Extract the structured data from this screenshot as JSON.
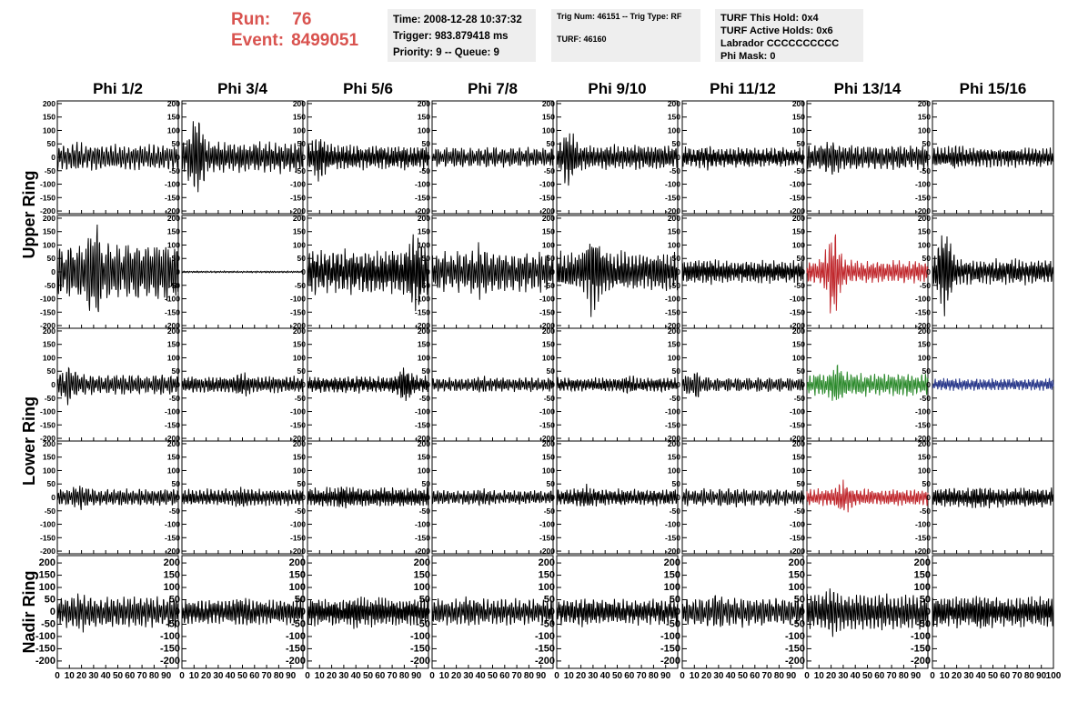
{
  "header": {
    "run_label": "Run:",
    "run_value": "76",
    "event_label": "Event:",
    "event_value": "8499051",
    "time": "Time: 2008-12-28 10:37:32",
    "trigger": "Trigger: 983.879418 ms",
    "priority": "Priority: 9 -- Queue: 9",
    "trig_num": "Trig Num: 46151 -- Trig Type: RF",
    "turf": "TURF: 46160",
    "turf_hold": "TURF This Hold: 0x4",
    "turf_active": "TURF Active Holds: 0x6",
    "labrador": "Labrador CCCCCCCCCC",
    "phi_mask": "Phi Mask: 0"
  },
  "colors": {
    "header_text": "#d9534f",
    "info_bg": "#eeeeee",
    "trace_default": "#000000",
    "trace_red": "#c0282d",
    "trace_green": "#2e8b2e",
    "trace_blue": "#2b3a8c"
  },
  "chart_data": {
    "type": "line",
    "title": "",
    "column_labels": [
      "Phi 1/2",
      "Phi 3/4",
      "Phi 5/6",
      "Phi 7/8",
      "Phi 9/10",
      "Phi 11/12",
      "Phi 13/14",
      "Phi 15/16"
    ],
    "group_labels": [
      {
        "label": "Upper Ring",
        "rows": [
          0,
          1
        ]
      },
      {
        "label": "Lower Ring",
        "rows": [
          2,
          3
        ]
      },
      {
        "label": "Nadir Ring",
        "rows": [
          4
        ]
      }
    ],
    "xlim": [
      0,
      100
    ],
    "x_ticks": [
      0,
      10,
      20,
      30,
      40,
      50,
      60,
      70,
      80,
      90,
      100
    ],
    "rows": [
      {
        "ylim": [
          -210,
          210
        ],
        "y_ticks": [
          -200,
          -150,
          -100,
          -50,
          0,
          50,
          100,
          150,
          200
        ]
      },
      {
        "ylim": [
          -210,
          210
        ],
        "y_ticks": [
          -200,
          -150,
          -100,
          -50,
          0,
          50,
          100,
          150,
          200
        ]
      },
      {
        "ylim": [
          -210,
          210
        ],
        "y_ticks": [
          -200,
          -150,
          -100,
          -50,
          0,
          50,
          100,
          150,
          200
        ]
      },
      {
        "ylim": [
          -210,
          210
        ],
        "y_ticks": [
          -200,
          -150,
          -100,
          -50,
          0,
          50,
          100,
          150,
          200
        ]
      },
      {
        "ylim": [
          -230,
          230
        ],
        "y_ticks": [
          -200,
          -150,
          -100,
          -50,
          0,
          50,
          100,
          150,
          200
        ]
      }
    ],
    "panels": [
      [
        {
          "amp": 45,
          "burst": 18,
          "burst_amp": 10,
          "color": "#000000"
        },
        {
          "amp": 55,
          "burst": 12,
          "burst_amp": 100,
          "color": "#000000"
        },
        {
          "amp": 45,
          "burst": 10,
          "burst_amp": 40,
          "color": "#000000"
        },
        {
          "amp": 35,
          "burst": 20,
          "burst_amp": 5,
          "color": "#000000"
        },
        {
          "amp": 45,
          "burst": 10,
          "burst_amp": 60,
          "color": "#000000"
        },
        {
          "amp": 35,
          "burst": 20,
          "burst_amp": 10,
          "color": "#000000"
        },
        {
          "amp": 45,
          "burst": 20,
          "burst_amp": 20,
          "color": "#000000"
        },
        {
          "amp": 35,
          "burst": 20,
          "burst_amp": 10,
          "color": "#000000"
        }
      ],
      [
        {
          "amp": 100,
          "burst": 30,
          "burst_amp": 90,
          "color": "#000000"
        },
        {
          "amp": 3,
          "burst": 20,
          "burst_amp": 0,
          "color": "#000000"
        },
        {
          "amp": 80,
          "burst": 90,
          "burst_amp": 70,
          "color": "#000000"
        },
        {
          "amp": 70,
          "burst": 40,
          "burst_amp": 30,
          "color": "#000000"
        },
        {
          "amp": 70,
          "burst": 30,
          "burst_amp": 90,
          "color": "#000000"
        },
        {
          "amp": 40,
          "burst": 20,
          "burst_amp": 10,
          "color": "#000000"
        },
        {
          "amp": 40,
          "burst": 22,
          "burst_amp": 120,
          "color": "#c0282d"
        },
        {
          "amp": 45,
          "burst": 10,
          "burst_amp": 130,
          "color": "#000000"
        }
      ],
      [
        {
          "amp": 35,
          "burst": 10,
          "burst_amp": 40,
          "color": "#000000"
        },
        {
          "amp": 30,
          "burst": 50,
          "burst_amp": 15,
          "color": "#000000"
        },
        {
          "amp": 30,
          "burst": 80,
          "burst_amp": 50,
          "color": "#000000"
        },
        {
          "amp": 25,
          "burst": 40,
          "burst_amp": 5,
          "color": "#000000"
        },
        {
          "amp": 25,
          "burst": 60,
          "burst_amp": 10,
          "color": "#000000"
        },
        {
          "amp": 25,
          "burst": 10,
          "burst_amp": 30,
          "color": "#000000"
        },
        {
          "amp": 40,
          "burst": 25,
          "burst_amp": 35,
          "color": "#2e8b2e"
        },
        {
          "amp": 22,
          "burst": 50,
          "burst_amp": 0,
          "color": "#2b3a8c"
        }
      ],
      [
        {
          "amp": 30,
          "burst": 20,
          "burst_amp": 15,
          "color": "#000000"
        },
        {
          "amp": 30,
          "burst": 50,
          "burst_amp": 10,
          "color": "#000000"
        },
        {
          "amp": 35,
          "burst": 30,
          "burst_amp": 15,
          "color": "#000000"
        },
        {
          "amp": 25,
          "burst": 40,
          "burst_amp": 5,
          "color": "#000000"
        },
        {
          "amp": 30,
          "burst": 25,
          "burst_amp": 15,
          "color": "#000000"
        },
        {
          "amp": 30,
          "burst": 40,
          "burst_amp": 5,
          "color": "#000000"
        },
        {
          "amp": 30,
          "burst": 30,
          "burst_amp": 35,
          "color": "#c0282d"
        },
        {
          "amp": 35,
          "burst": 40,
          "burst_amp": 10,
          "color": "#000000"
        }
      ],
      [
        {
          "amp": 60,
          "burst": 20,
          "burst_amp": 20,
          "color": "#000000"
        },
        {
          "amp": 50,
          "burst": 50,
          "burst_amp": 10,
          "color": "#000000"
        },
        {
          "amp": 55,
          "burst": 40,
          "burst_amp": 10,
          "color": "#000000"
        },
        {
          "amp": 50,
          "burst": 30,
          "burst_amp": 10,
          "color": "#000000"
        },
        {
          "amp": 50,
          "burst": 20,
          "burst_amp": 10,
          "color": "#000000"
        },
        {
          "amp": 55,
          "burst": 30,
          "burst_amp": 15,
          "color": "#000000"
        },
        {
          "amp": 70,
          "burst": 20,
          "burst_amp": 30,
          "color": "#000000"
        },
        {
          "amp": 60,
          "burst": 40,
          "burst_amp": 20,
          "color": "#000000"
        }
      ]
    ]
  }
}
